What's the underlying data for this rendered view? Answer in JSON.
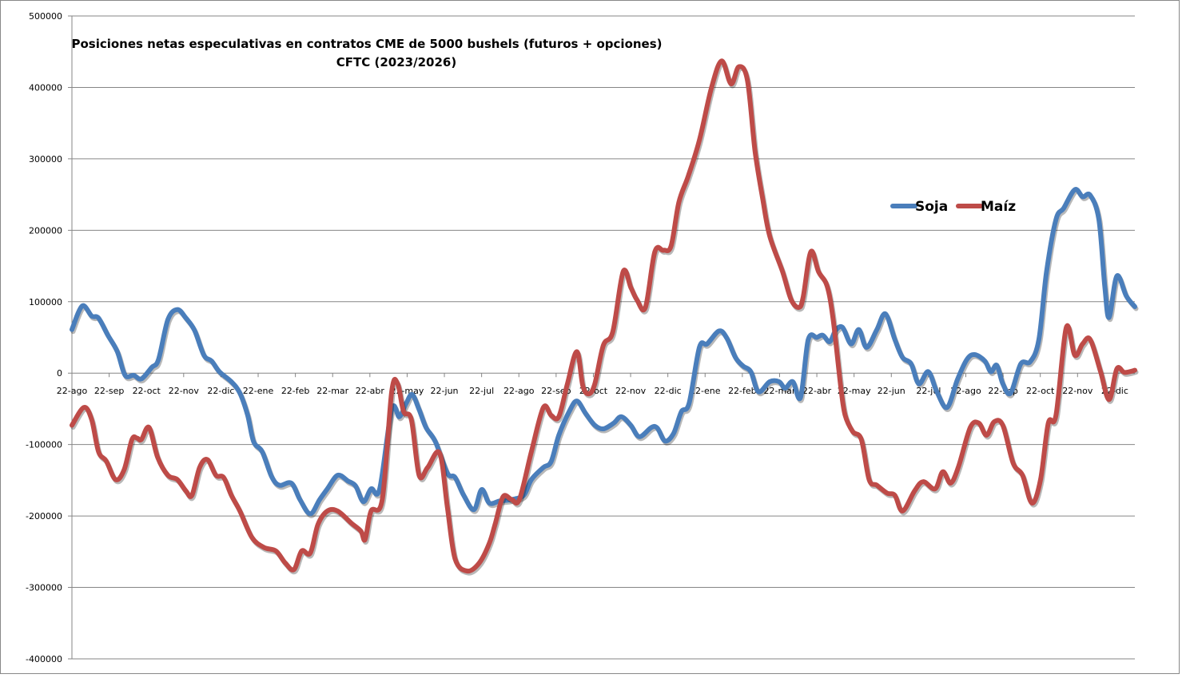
{
  "chart_data": {
    "type": "line",
    "title": "Posiciones netas especulativas en contratos CME de 5000 bushels (futuros + opciones)",
    "subtitle": "CFTC (2023/2026)",
    "xlabel": "",
    "ylabel": "",
    "ylim": [
      -400000,
      500000
    ],
    "yticks": [
      500000,
      400000,
      300000,
      200000,
      100000,
      0,
      -100000,
      -200000,
      -300000,
      -400000
    ],
    "ytick_labels": [
      "500000",
      "400000",
      "300000",
      "200000",
      "100000",
      "0",
      "-100000",
      "-200000",
      "-300000",
      "-400000"
    ],
    "x_unit": "weeks",
    "xlim": [
      0,
      124
    ],
    "x_tick_labels": [
      "22-ago",
      "22-sep",
      "22-oct",
      "22-nov",
      "22-dic",
      "22-ene",
      "22-feb",
      "22-mar",
      "22-abr",
      "22-may",
      "22-jun",
      "22-jul",
      "22-ago",
      "22-sep",
      "22-oct",
      "22-nov",
      "22-dic",
      "22-ene",
      "22-feb",
      "22-mar",
      "22-abr",
      "22-may",
      "22-jun",
      "22-jul",
      "22-ago",
      "22-sep",
      "22-oct",
      "22-nov",
      "22-dic"
    ],
    "weeks_per_tick": 4.345,
    "grid": true,
    "legend_position": "right",
    "series": [
      {
        "name": "Soja",
        "color": "#4A7EBB",
        "points": [
          [
            0,
            61000
          ],
          [
            1.2,
            94000
          ],
          [
            2.3,
            80000
          ],
          [
            3.1,
            77000
          ],
          [
            4.2,
            53000
          ],
          [
            5.3,
            30000
          ],
          [
            6.2,
            -3000
          ],
          [
            7.2,
            -3000
          ],
          [
            8.1,
            -8000
          ],
          [
            9.3,
            8000
          ],
          [
            10.1,
            19000
          ],
          [
            11.2,
            75000
          ],
          [
            12.3,
            89000
          ],
          [
            13.3,
            77000
          ],
          [
            14.3,
            60000
          ],
          [
            15.4,
            25000
          ],
          [
            16.3,
            17000
          ],
          [
            17.2,
            2000
          ],
          [
            18.6,
            -12000
          ],
          [
            19.6,
            -28000
          ],
          [
            20.5,
            -59000
          ],
          [
            21.2,
            -96000
          ],
          [
            22.2,
            -110000
          ],
          [
            23.3,
            -145000
          ],
          [
            24.2,
            -157000
          ],
          [
            25.6,
            -154000
          ],
          [
            26.6,
            -177000
          ],
          [
            27.8,
            -197000
          ],
          [
            28.9,
            -177000
          ],
          [
            29.8,
            -162000
          ],
          [
            31.0,
            -143000
          ],
          [
            32.2,
            -151000
          ],
          [
            33.1,
            -158000
          ],
          [
            34.0,
            -180000
          ],
          [
            34.9,
            -162000
          ],
          [
            35.9,
            -162000
          ],
          [
            37.3,
            -51000
          ],
          [
            38.2,
            -61000
          ],
          [
            39.0,
            -42000
          ],
          [
            39.7,
            -30000
          ],
          [
            40.5,
            -51000
          ],
          [
            41.3,
            -76000
          ],
          [
            42.4,
            -96000
          ],
          [
            43.8,
            -140000
          ],
          [
            44.7,
            -146000
          ],
          [
            45.7,
            -171000
          ],
          [
            46.9,
            -191000
          ],
          [
            47.8,
            -163000
          ],
          [
            48.7,
            -182000
          ],
          [
            49.9,
            -179000
          ],
          [
            51.3,
            -177000
          ],
          [
            52.7,
            -171000
          ],
          [
            53.6,
            -149000
          ],
          [
            55.0,
            -132000
          ],
          [
            55.9,
            -124000
          ],
          [
            56.8,
            -87000
          ],
          [
            58.0,
            -54000
          ],
          [
            58.9,
            -39000
          ],
          [
            59.9,
            -56000
          ],
          [
            61.0,
            -73000
          ],
          [
            62.0,
            -78000
          ],
          [
            63.2,
            -70000
          ],
          [
            64.1,
            -61000
          ],
          [
            65.2,
            -73000
          ],
          [
            66.2,
            -89000
          ],
          [
            67.6,
            -76000
          ],
          [
            68.3,
            -77000
          ],
          [
            69.2,
            -95000
          ],
          [
            70.2,
            -84000
          ],
          [
            71.1,
            -54000
          ],
          [
            72.0,
            -42000
          ],
          [
            73.2,
            36000
          ],
          [
            74.1,
            41000
          ],
          [
            75.5,
            59000
          ],
          [
            76.4,
            49000
          ],
          [
            77.4,
            22000
          ],
          [
            78.3,
            10000
          ],
          [
            79.2,
            2000
          ],
          [
            80.1,
            -26000
          ],
          [
            81.4,
            -12000
          ],
          [
            82.5,
            -12000
          ],
          [
            83.2,
            -21000
          ],
          [
            84.1,
            -12000
          ],
          [
            85.0,
            -34000
          ],
          [
            85.9,
            47000
          ],
          [
            86.9,
            50000
          ],
          [
            87.6,
            53000
          ],
          [
            88.4,
            44000
          ],
          [
            89.1,
            60000
          ],
          [
            89.9,
            64000
          ],
          [
            90.9,
            41000
          ],
          [
            91.8,
            61000
          ],
          [
            92.7,
            36000
          ],
          [
            93.9,
            61000
          ],
          [
            94.9,
            83000
          ],
          [
            96.0,
            47000
          ],
          [
            96.9,
            22000
          ],
          [
            97.9,
            13000
          ],
          [
            98.8,
            -15000
          ],
          [
            99.9,
            2000
          ],
          [
            100.9,
            -26000
          ],
          [
            102.1,
            -48000
          ],
          [
            103.3,
            -9000
          ],
          [
            104.4,
            19000
          ],
          [
            105.3,
            26000
          ],
          [
            106.5,
            17000
          ],
          [
            107.2,
            2000
          ],
          [
            107.9,
            11000
          ],
          [
            108.6,
            -15000
          ],
          [
            109.5,
            -28000
          ],
          [
            110.7,
            13000
          ],
          [
            111.8,
            16000
          ],
          [
            112.8,
            47000
          ],
          [
            113.7,
            142000
          ],
          [
            114.8,
            215000
          ],
          [
            115.7,
            231000
          ],
          [
            117.0,
            257000
          ],
          [
            117.9,
            247000
          ],
          [
            118.8,
            249000
          ],
          [
            119.8,
            215000
          ],
          [
            120.5,
            120000
          ],
          [
            121.0,
            78000
          ],
          [
            121.9,
            136000
          ],
          [
            123.0,
            108000
          ],
          [
            124.0,
            93000
          ]
        ]
      },
      {
        "name": "Maíz",
        "color": "#BE4B48",
        "points": [
          [
            0,
            -73000
          ],
          [
            1.4,
            -48000
          ],
          [
            2.3,
            -65000
          ],
          [
            3.1,
            -110000
          ],
          [
            4.0,
            -123000
          ],
          [
            5.1,
            -149000
          ],
          [
            6.1,
            -135000
          ],
          [
            7.0,
            -93000
          ],
          [
            7.6,
            -91000
          ],
          [
            8.1,
            -93000
          ],
          [
            9.0,
            -76000
          ],
          [
            10.0,
            -118000
          ],
          [
            11.2,
            -143000
          ],
          [
            12.3,
            -149000
          ],
          [
            13.3,
            -165000
          ],
          [
            14.0,
            -171000
          ],
          [
            14.9,
            -132000
          ],
          [
            15.8,
            -121000
          ],
          [
            16.8,
            -143000
          ],
          [
            17.7,
            -146000
          ],
          [
            18.6,
            -171000
          ],
          [
            19.6,
            -193000
          ],
          [
            21.0,
            -230000
          ],
          [
            22.4,
            -244000
          ],
          [
            23.8,
            -249000
          ],
          [
            24.9,
            -266000
          ],
          [
            25.9,
            -275000
          ],
          [
            26.8,
            -249000
          ],
          [
            27.8,
            -252000
          ],
          [
            28.7,
            -212000
          ],
          [
            29.8,
            -193000
          ],
          [
            31.0,
            -193000
          ],
          [
            32.6,
            -210000
          ],
          [
            33.7,
            -221000
          ],
          [
            34.2,
            -233000
          ],
          [
            34.9,
            -193000
          ],
          [
            36.2,
            -177000
          ],
          [
            37.3,
            -26000
          ],
          [
            38.0,
            -15000
          ],
          [
            38.7,
            -54000
          ],
          [
            39.6,
            -65000
          ],
          [
            40.5,
            -143000
          ],
          [
            41.5,
            -132000
          ],
          [
            42.9,
            -112000
          ],
          [
            43.8,
            -188000
          ],
          [
            44.7,
            -260000
          ],
          [
            46.1,
            -277000
          ],
          [
            47.5,
            -266000
          ],
          [
            48.7,
            -238000
          ],
          [
            49.4,
            -210000
          ],
          [
            50.3,
            -173000
          ],
          [
            51.3,
            -177000
          ],
          [
            52.2,
            -177000
          ],
          [
            53.6,
            -110000
          ],
          [
            55.0,
            -48000
          ],
          [
            55.9,
            -59000
          ],
          [
            56.8,
            -61000
          ],
          [
            57.8,
            -15000
          ],
          [
            58.9,
            30000
          ],
          [
            59.6,
            -18000
          ],
          [
            60.3,
            -29000
          ],
          [
            61.0,
            -15000
          ],
          [
            62.0,
            39000
          ],
          [
            63.1,
            58000
          ],
          [
            64.3,
            142000
          ],
          [
            65.2,
            120000
          ],
          [
            65.9,
            103000
          ],
          [
            66.9,
            92000
          ],
          [
            68.0,
            170000
          ],
          [
            69.0,
            172000
          ],
          [
            69.9,
            178000
          ],
          [
            70.8,
            239000
          ],
          [
            71.9,
            276000
          ],
          [
            73.2,
            326000
          ],
          [
            74.6,
            399000
          ],
          [
            75.8,
            437000
          ],
          [
            76.9,
            405000
          ],
          [
            77.8,
            429000
          ],
          [
            78.8,
            410000
          ],
          [
            79.7,
            310000
          ],
          [
            80.6,
            243000
          ],
          [
            81.4,
            192000
          ],
          [
            82.9,
            142000
          ],
          [
            83.9,
            103000
          ],
          [
            84.8,
            92000
          ],
          [
            85.3,
            106000
          ],
          [
            86.2,
            170000
          ],
          [
            87.1,
            142000
          ],
          [
            88.1,
            122000
          ],
          [
            88.8,
            75000
          ],
          [
            89.7,
            -20000
          ],
          [
            90.2,
            -59000
          ],
          [
            91.1,
            -82000
          ],
          [
            92.1,
            -93000
          ],
          [
            93.0,
            -149000
          ],
          [
            93.9,
            -157000
          ],
          [
            95.1,
            -168000
          ],
          [
            96.0,
            -171000
          ],
          [
            96.9,
            -193000
          ],
          [
            98.3,
            -165000
          ],
          [
            99.3,
            -152000
          ],
          [
            100.7,
            -162000
          ],
          [
            101.6,
            -138000
          ],
          [
            102.5,
            -154000
          ],
          [
            103.4,
            -132000
          ],
          [
            104.8,
            -76000
          ],
          [
            105.8,
            -70000
          ],
          [
            106.7,
            -87000
          ],
          [
            107.6,
            -68000
          ],
          [
            108.6,
            -73000
          ],
          [
            109.8,
            -126000
          ],
          [
            110.9,
            -143000
          ],
          [
            112.0,
            -182000
          ],
          [
            113.0,
            -149000
          ],
          [
            113.9,
            -70000
          ],
          [
            114.8,
            -59000
          ],
          [
            116.0,
            64000
          ],
          [
            117.0,
            25000
          ],
          [
            117.9,
            41000
          ],
          [
            118.8,
            47000
          ],
          [
            120.0,
            2000
          ],
          [
            121.0,
            -37000
          ],
          [
            121.9,
            6000
          ],
          [
            122.8,
            1000
          ],
          [
            124.0,
            4000
          ]
        ]
      }
    ]
  }
}
